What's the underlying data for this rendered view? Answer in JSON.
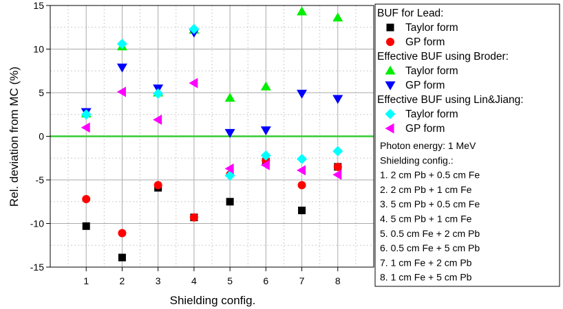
{
  "chart_data": {
    "type": "scatter",
    "xlabel": "Shielding config.",
    "ylabel": "Rel. deviation from MC (%)",
    "x": [
      1,
      2,
      3,
      4,
      5,
      6,
      7,
      8
    ],
    "xlim": [
      0,
      9
    ],
    "ylim": [
      -15,
      15
    ],
    "x_ticks": [
      1,
      2,
      3,
      4,
      5,
      6,
      7,
      8
    ],
    "y_ticks": [
      -15,
      -10,
      -5,
      0,
      5,
      10,
      15
    ],
    "grid": true,
    "reference_line": {
      "y": 0,
      "color": "#33cc33"
    },
    "legend_placement": "right",
    "legend_groups": [
      {
        "title": "BUF for Lead:",
        "series": [
          0,
          1
        ]
      },
      {
        "title": "Effective BUF using Broder:",
        "series": [
          2,
          3
        ]
      },
      {
        "title": "Effective BUF using Lin&Jiang:",
        "series": [
          4,
          5
        ]
      }
    ],
    "series": [
      {
        "name": "Taylor form",
        "marker": "square",
        "color": "#000000",
        "values": [
          -10.3,
          -13.9,
          -5.9,
          -9.3,
          -7.5,
          -2.9,
          -8.5,
          -3.5
        ]
      },
      {
        "name": "GP form",
        "marker": "circle",
        "color": "#ff0000",
        "values": [
          -7.2,
          -11.1,
          -5.6,
          -9.3,
          -4.4,
          -2.8,
          -5.6,
          -3.5
        ]
      },
      {
        "name": "Taylor form",
        "marker": "triangle-up",
        "color": "#00ee00",
        "values": [
          2.6,
          10.3,
          5.0,
          12.2,
          4.4,
          5.7,
          14.3,
          13.6
        ]
      },
      {
        "name": "GP form",
        "marker": "triangle-down",
        "color": "#0000ff",
        "values": [
          2.8,
          7.9,
          5.5,
          11.9,
          0.4,
          0.7,
          4.9,
          4.3
        ]
      },
      {
        "name": "Taylor form",
        "marker": "diamond",
        "color": "#00ffff",
        "values": [
          2.5,
          10.6,
          4.9,
          12.3,
          -4.5,
          -2.2,
          -2.6,
          -1.7
        ]
      },
      {
        "name": "GP form",
        "marker": "triangle-left",
        "color": "#ff00ff",
        "values": [
          1.0,
          5.1,
          1.9,
          6.1,
          -3.7,
          -3.3,
          -3.9,
          -4.4
        ]
      }
    ],
    "notes": [
      "Photon energy: 1 MeV",
      "Shielding config.:",
      "1. 2 cm Pb + 0.5 cm Fe",
      "2. 2 cm Pb + 1 cm Fe",
      "3. 5 cm Pb + 0.5 cm Fe",
      "4. 5 cm Pb + 1 cm Fe",
      "5. 0.5 cm Fe + 2 cm Pb",
      "6. 0.5 cm Fe + 5 cm Pb",
      "7. 1 cm Fe + 2 cm Pb",
      "8. 1 cm Fe + 5 cm Pb"
    ]
  }
}
